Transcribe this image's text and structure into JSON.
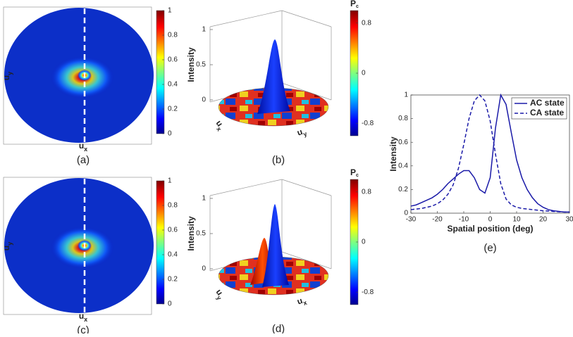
{
  "chart_data": [
    {
      "type": "heatmap",
      "caption": "(a)",
      "xlabel": "u",
      "xlabel_sub": "x",
      "ylabel": "u",
      "ylabel_sub": "y",
      "clim": [
        0,
        1
      ],
      "cticks": [
        0,
        0.2,
        0.4,
        0.6,
        0.8,
        1
      ]
    },
    {
      "type": "surface3d",
      "caption": "(b)",
      "zlabel": "Intensity",
      "zlim": [
        0,
        1
      ],
      "zticks": [
        0,
        0.5,
        1
      ],
      "xlabel": "u",
      "xlabel_sub": "x",
      "ylabel": "u",
      "ylabel_sub": "y",
      "colorbar_title": "P",
      "colorbar_title_sub": "c",
      "clim": [
        -1,
        1
      ],
      "cticks": [
        -0.8,
        0,
        0.8
      ]
    },
    {
      "type": "heatmap",
      "caption": "(c)",
      "xlabel": "u",
      "xlabel_sub": "x",
      "ylabel": "u",
      "ylabel_sub": "y",
      "clim": [
        0,
        1
      ],
      "cticks": [
        0,
        0.2,
        0.4,
        0.6,
        0.8,
        1
      ]
    },
    {
      "type": "surface3d",
      "caption": "(d)",
      "zlabel": "Intensity",
      "zlim": [
        0,
        1
      ],
      "zticks": [
        0,
        0.5,
        1
      ],
      "xlabel": "u",
      "xlabel_sub": "y",
      "ylabel": "u",
      "ylabel_sub": "x",
      "colorbar_title": "P",
      "colorbar_title_sub": "c",
      "clim": [
        -1,
        1
      ],
      "cticks": [
        -0.8,
        0,
        0.8
      ]
    },
    {
      "type": "line",
      "caption": "(e)",
      "xlabel": "Spatial position (deg)",
      "ylabel": "Intensity",
      "x": [
        -30,
        -28,
        -26,
        -24,
        -22,
        -20,
        -18,
        -16,
        -14,
        -12,
        -10,
        -8,
        -6,
        -4,
        -2,
        0,
        2,
        4,
        6,
        8,
        10,
        12,
        14,
        16,
        18,
        20,
        22,
        24,
        26,
        28,
        30
      ],
      "series": [
        {
          "name": "AC state",
          "color": "#1a1aa8",
          "dash": "solid",
          "values": [
            0.06,
            0.07,
            0.09,
            0.11,
            0.13,
            0.16,
            0.2,
            0.25,
            0.29,
            0.33,
            0.36,
            0.36,
            0.3,
            0.2,
            0.17,
            0.3,
            0.72,
            1.0,
            0.92,
            0.68,
            0.45,
            0.3,
            0.2,
            0.13,
            0.08,
            0.05,
            0.03,
            0.02,
            0.015,
            0.01,
            0.01
          ]
        },
        {
          "name": "CA state",
          "color": "#1a1aa8",
          "dash": "dashed",
          "values": [
            0.03,
            0.035,
            0.04,
            0.05,
            0.06,
            0.08,
            0.11,
            0.16,
            0.24,
            0.38,
            0.58,
            0.8,
            0.95,
            1.0,
            0.95,
            0.78,
            0.5,
            0.25,
            0.12,
            0.07,
            0.05,
            0.04,
            0.035,
            0.03,
            0.025,
            0.02,
            0.018,
            0.015,
            0.012,
            0.01,
            0.01
          ]
        }
      ],
      "xlim": [
        -30,
        30
      ],
      "ylim": [
        0,
        1
      ],
      "xticks": [
        -30,
        -20,
        -10,
        0,
        10,
        20,
        30
      ],
      "yticks": [
        0,
        0.2,
        0.4,
        0.6,
        0.8,
        1
      ],
      "legend": "upper right"
    }
  ]
}
